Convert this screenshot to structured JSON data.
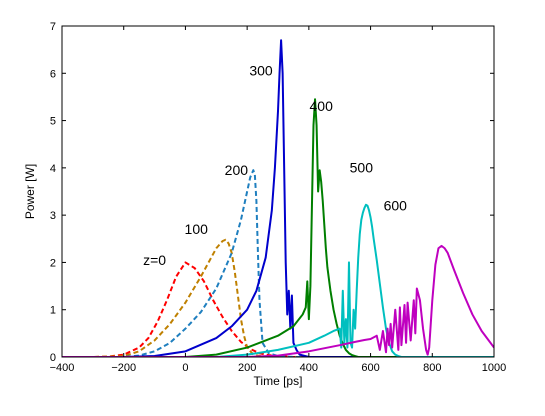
{
  "chart_data": {
    "type": "line",
    "title": "",
    "xlabel": "Time [ps]",
    "ylabel": "Power [W]",
    "xlim": [
      -400,
      1000
    ],
    "ylim": [
      0,
      7
    ],
    "xticks": [
      -400,
      -200,
      0,
      200,
      400,
      600,
      800,
      1000
    ],
    "yticks": [
      0,
      1,
      2,
      3,
      4,
      5,
      6,
      7
    ],
    "grid": false,
    "legend": "none",
    "annotations": [
      {
        "text": "z=0",
        "x": -100,
        "y": 1.95
      },
      {
        "text": "100",
        "x": 35,
        "y": 2.6
      },
      {
        "text": "200",
        "x": 165,
        "y": 3.85
      },
      {
        "text": "300",
        "x": 245,
        "y": 5.95
      },
      {
        "text": "400",
        "x": 440,
        "y": 5.2
      },
      {
        "text": "500",
        "x": 570,
        "y": 3.9
      },
      {
        "text": "600",
        "x": 680,
        "y": 3.1
      }
    ],
    "series": [
      {
        "color": "#ff0000",
        "dash": true,
        "x": [
          -400,
          -300,
          -250,
          -200,
          -150,
          -120,
          -90,
          -60,
          -30,
          0,
          30,
          60,
          90,
          120,
          150,
          180,
          210,
          240,
          270,
          300,
          350,
          400,
          450
        ],
        "y": [
          0.0,
          0.0,
          0.01,
          0.05,
          0.2,
          0.4,
          0.75,
          1.2,
          1.7,
          2.0,
          1.88,
          1.6,
          1.2,
          0.85,
          0.55,
          0.32,
          0.17,
          0.08,
          0.04,
          0.02,
          0.0,
          0.0,
          0.0
        ]
      },
      {
        "color": "#bf8000",
        "dash": true,
        "x": [
          -400,
          -300,
          -200,
          -150,
          -100,
          -50,
          0,
          50,
          100,
          120,
          130,
          140,
          150,
          160,
          170,
          180,
          190,
          200,
          220,
          250,
          300,
          350,
          400
        ],
        "y": [
          0.0,
          0.0,
          0.02,
          0.12,
          0.35,
          0.7,
          1.15,
          1.7,
          2.3,
          2.45,
          2.48,
          2.4,
          2.2,
          1.8,
          1.3,
          0.8,
          0.45,
          0.2,
          0.05,
          0.01,
          0.0,
          0.0,
          0.0
        ]
      },
      {
        "color": "#1f7fbf",
        "dash": true,
        "x": [
          -400,
          -300,
          -200,
          -150,
          -100,
          -50,
          0,
          50,
          100,
          150,
          180,
          200,
          210,
          220,
          225,
          230,
          235,
          240,
          250,
          270,
          300,
          350,
          400
        ],
        "y": [
          0.0,
          0.0,
          0.0,
          0.03,
          0.12,
          0.3,
          0.6,
          0.95,
          1.45,
          2.2,
          2.9,
          3.5,
          3.8,
          3.95,
          3.85,
          3.3,
          2.2,
          1.2,
          0.3,
          0.08,
          0.02,
          0.0,
          0.0
        ]
      },
      {
        "color": "#0000cc",
        "dash": false,
        "x": [
          -400,
          -200,
          -100,
          0,
          100,
          150,
          200,
          230,
          260,
          280,
          290,
          300,
          305,
          310,
          315,
          320,
          325,
          330,
          335,
          340,
          345,
          350,
          360,
          370,
          400,
          500,
          1000
        ],
        "y": [
          0.0,
          0.0,
          0.02,
          0.12,
          0.4,
          0.65,
          1.0,
          1.4,
          2.1,
          3.1,
          4.0,
          5.2,
          6.0,
          6.7,
          6.0,
          4.0,
          2.0,
          0.9,
          1.4,
          0.6,
          1.3,
          0.3,
          0.15,
          0.05,
          0.0,
          0.0,
          0.0
        ]
      },
      {
        "color": "#007f00",
        "dash": false,
        "x": [
          -400,
          0,
          100,
          200,
          300,
          350,
          380,
          390,
          395,
          400,
          405,
          410,
          415,
          420,
          425,
          430,
          435,
          440,
          445,
          450,
          455,
          460,
          465,
          470,
          480,
          490,
          500,
          510,
          520,
          530,
          540,
          550,
          560,
          600,
          1000
        ],
        "y": [
          0.0,
          0.0,
          0.05,
          0.2,
          0.45,
          0.65,
          0.9,
          1.05,
          1.6,
          0.8,
          1.5,
          3.2,
          4.9,
          5.45,
          4.9,
          3.5,
          3.95,
          3.7,
          3.3,
          2.8,
          2.3,
          1.9,
          1.65,
          1.4,
          1.0,
          0.7,
          0.45,
          0.28,
          0.15,
          0.08,
          0.04,
          0.02,
          0.0,
          0.0,
          0.0
        ]
      },
      {
        "color": "#00bfbf",
        "dash": false,
        "x": [
          -400,
          100,
          200,
          300,
          400,
          450,
          480,
          500,
          505,
          510,
          515,
          520,
          525,
          530,
          535,
          540,
          545,
          550,
          555,
          560,
          565,
          570,
          575,
          580,
          585,
          590,
          595,
          600,
          605,
          610,
          620,
          630,
          640,
          650,
          660,
          670,
          680,
          690,
          700,
          1000
        ],
        "y": [
          0.0,
          0.0,
          0.05,
          0.15,
          0.3,
          0.45,
          0.55,
          0.6,
          0.2,
          1.4,
          0.3,
          0.8,
          0.2,
          2.0,
          0.3,
          0.2,
          1.0,
          0.6,
          1.4,
          2.1,
          2.6,
          2.9,
          3.05,
          3.15,
          3.22,
          3.2,
          3.1,
          2.95,
          2.75,
          2.5,
          2.05,
          1.55,
          1.05,
          0.6,
          0.3,
          0.12,
          0.05,
          0.02,
          0.0,
          0.0
        ]
      },
      {
        "color": "#bf00bf",
        "dash": false,
        "x": [
          -400,
          200,
          300,
          400,
          500,
          550,
          580,
          600,
          620,
          630,
          640,
          650,
          655,
          660,
          665,
          670,
          680,
          690,
          695,
          700,
          710,
          715,
          720,
          730,
          740,
          745,
          750,
          760,
          770,
          780,
          785,
          790,
          800,
          810,
          820,
          830,
          840,
          850,
          870,
          900,
          930,
          960,
          1000
        ],
        "y": [
          0.0,
          0.0,
          0.03,
          0.12,
          0.25,
          0.32,
          0.36,
          0.38,
          0.45,
          0.15,
          0.55,
          0.1,
          0.6,
          0.25,
          0.7,
          0.2,
          1.0,
          0.15,
          1.05,
          0.25,
          1.1,
          0.3,
          1.15,
          0.35,
          1.2,
          0.5,
          1.45,
          1.2,
          0.6,
          0.15,
          0.05,
          0.2,
          1.2,
          1.95,
          2.3,
          2.35,
          2.3,
          2.2,
          1.85,
          1.35,
          0.9,
          0.55,
          0.2
        ]
      }
    ]
  }
}
